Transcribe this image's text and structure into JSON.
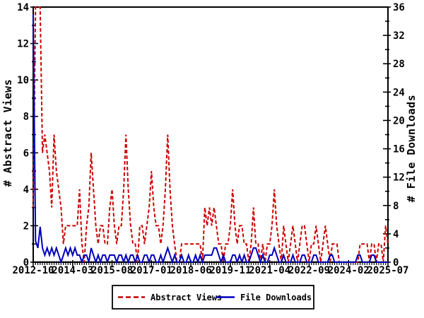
{
  "chart_data": {
    "type": "line",
    "title": "",
    "x_unit": "month",
    "x_start": "2012-10",
    "x_end": "2025-07",
    "n_points": 154,
    "x_tick_labels": [
      "2012-10",
      "2014-03",
      "2015-08",
      "2017-01",
      "2018-06",
      "2019-11",
      "2021-04",
      "2022-09",
      "2024-02",
      "2025-07"
    ],
    "x_tick_positions_months": [
      0,
      17,
      34,
      51,
      68,
      85,
      102,
      119,
      136,
      153
    ],
    "left_axis": {
      "label": "# Abstract Views",
      "min": 0,
      "max": 14,
      "label_step": 2,
      "minor_step": 1
    },
    "right_axis": {
      "label": "# File Downloads",
      "min": 0,
      "max": 36,
      "label_step": 4,
      "minor_step": 2
    },
    "grid": false,
    "legend": {
      "position": "bottom-center"
    },
    "series": [
      {
        "name": "Abstract Views",
        "axis": "left",
        "color": "#cc0000",
        "style": "dashed",
        "values": [
          3,
          14,
          14,
          14,
          6,
          7,
          6,
          5,
          3,
          7,
          5,
          4,
          3,
          1,
          2,
          2,
          2,
          2,
          2,
          2,
          4,
          1,
          0,
          2,
          3,
          6,
          4,
          2,
          1,
          2,
          2,
          1,
          1,
          3,
          4,
          2,
          1,
          2,
          2,
          4,
          7,
          4,
          2,
          1,
          1,
          0,
          2,
          2,
          1,
          2,
          3,
          5,
          3,
          2,
          2,
          1,
          2,
          4,
          7,
          4,
          2,
          1,
          0,
          0,
          1,
          1,
          1,
          1,
          1,
          1,
          1,
          1,
          1,
          0,
          3,
          2,
          3,
          2,
          3,
          2,
          1,
          1,
          0,
          1,
          1,
          2,
          4,
          2,
          1,
          2,
          2,
          1,
          1,
          0,
          1,
          3,
          1,
          1,
          0,
          1,
          0,
          1,
          1,
          2,
          4,
          2,
          1,
          0,
          2,
          1,
          0,
          1,
          2,
          1,
          0,
          1,
          2,
          2,
          1,
          0,
          1,
          1,
          2,
          1,
          0,
          1,
          2,
          1,
          0,
          1,
          1,
          1,
          0,
          0,
          0,
          0,
          0,
          0,
          0,
          0,
          0,
          1,
          1,
          1,
          1,
          0,
          1,
          1,
          0,
          1,
          1,
          0,
          2,
          1
        ]
      },
      {
        "name": "File Downloads",
        "axis": "right",
        "color": "#0000bb",
        "style": "solid",
        "values": [
          35,
          3,
          2,
          5,
          2,
          1,
          2,
          1,
          2,
          1,
          2,
          1,
          0,
          1,
          2,
          1,
          2,
          1,
          2,
          1,
          1,
          0,
          1,
          1,
          0,
          2,
          1,
          0,
          1,
          0,
          1,
          1,
          0,
          1,
          1,
          1,
          0,
          1,
          1,
          0,
          1,
          0,
          1,
          1,
          0,
          1,
          0,
          0,
          1,
          1,
          0,
          1,
          1,
          0,
          0,
          1,
          0,
          1,
          2,
          1,
          0,
          1,
          0,
          0,
          1,
          0,
          0,
          1,
          0,
          0,
          1,
          0,
          1,
          0,
          1,
          1,
          1,
          1,
          2,
          2,
          1,
          0,
          1,
          0,
          0,
          0,
          1,
          1,
          0,
          1,
          0,
          1,
          0,
          0,
          1,
          2,
          2,
          1,
          0,
          1,
          0,
          0,
          1,
          1,
          2,
          1,
          0,
          0,
          1,
          0,
          0,
          0,
          1,
          0,
          0,
          0,
          1,
          1,
          0,
          0,
          0,
          1,
          1,
          0,
          0,
          0,
          0,
          0,
          1,
          1,
          0,
          0,
          0,
          0,
          0,
          0,
          0,
          0,
          0,
          0,
          1,
          1,
          0,
          0,
          0,
          0,
          1,
          1,
          0,
          0,
          0,
          0,
          0,
          0
        ]
      }
    ],
    "colors": {
      "axis": "#000000",
      "background": "#ffffff"
    }
  }
}
